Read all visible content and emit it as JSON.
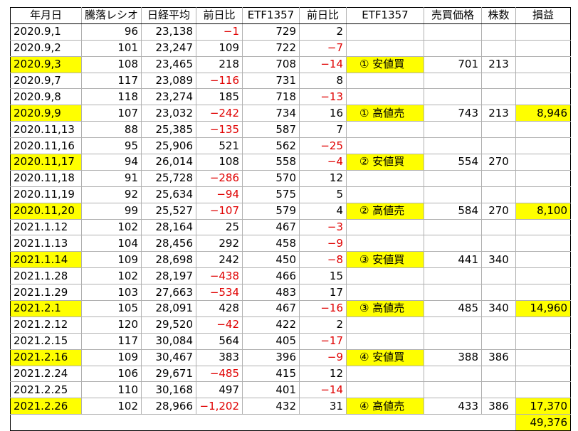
{
  "headers": [
    "年月日",
    "騰落レシオ",
    "日経平均",
    "前日比",
    "ETF1357",
    "前日比",
    "ETF1357",
    "売買価格",
    "株数",
    "損益"
  ],
  "rows": [
    {
      "date": "2020.9,1",
      "ratio": "96",
      "nikkei": "23,138",
      "nikkei_chg": "−1",
      "etf": "729",
      "etf_chg": "2",
      "op": "",
      "price": "",
      "shares": "",
      "pl": "",
      "highlight": false
    },
    {
      "date": "2020.9,2",
      "ratio": "101",
      "nikkei": "23,247",
      "nikkei_chg": "109",
      "etf": "722",
      "etf_chg": "−7",
      "op": "",
      "price": "",
      "shares": "",
      "pl": "",
      "highlight": false
    },
    {
      "date": "2020.9,3",
      "ratio": "108",
      "nikkei": "23,465",
      "nikkei_chg": "218",
      "etf": "708",
      "etf_chg": "−14",
      "op": "① 安値買",
      "price": "701",
      "shares": "213",
      "pl": "",
      "highlight": true
    },
    {
      "date": "2020.9,7",
      "ratio": "117",
      "nikkei": "23,089",
      "nikkei_chg": "−116",
      "etf": "731",
      "etf_chg": "8",
      "op": "",
      "price": "",
      "shares": "",
      "pl": "",
      "highlight": false
    },
    {
      "date": "2020.9,8",
      "ratio": "118",
      "nikkei": "23,274",
      "nikkei_chg": "185",
      "etf": "718",
      "etf_chg": "−13",
      "op": "",
      "price": "",
      "shares": "",
      "pl": "",
      "highlight": false
    },
    {
      "date": "2020.9,9",
      "ratio": "107",
      "nikkei": "23,032",
      "nikkei_chg": "−242",
      "etf": "734",
      "etf_chg": "16",
      "op": "① 高値売",
      "price": "743",
      "shares": "213",
      "pl": "8,946",
      "highlight": true
    },
    {
      "date": "2020.11,13",
      "ratio": "88",
      "nikkei": "25,385",
      "nikkei_chg": "−135",
      "etf": "587",
      "etf_chg": "7",
      "op": "",
      "price": "",
      "shares": "",
      "pl": "",
      "highlight": false
    },
    {
      "date": "2020.11,16",
      "ratio": "95",
      "nikkei": "25,906",
      "nikkei_chg": "521",
      "etf": "562",
      "etf_chg": "−25",
      "op": "",
      "price": "",
      "shares": "",
      "pl": "",
      "highlight": false
    },
    {
      "date": "2020.11,17",
      "ratio": "94",
      "nikkei": "26,014",
      "nikkei_chg": "108",
      "etf": "558",
      "etf_chg": "−4",
      "op": "② 安値買",
      "price": "554",
      "shares": "270",
      "pl": "",
      "highlight": true
    },
    {
      "date": "2020.11,18",
      "ratio": "91",
      "nikkei": "25,728",
      "nikkei_chg": "−286",
      "etf": "570",
      "etf_chg": "12",
      "op": "",
      "price": "",
      "shares": "",
      "pl": "",
      "highlight": false
    },
    {
      "date": "2020.11,19",
      "ratio": "92",
      "nikkei": "25,634",
      "nikkei_chg": "−94",
      "etf": "575",
      "etf_chg": "5",
      "op": "",
      "price": "",
      "shares": "",
      "pl": "",
      "highlight": false
    },
    {
      "date": "2020.11,20",
      "ratio": "99",
      "nikkei": "25,527",
      "nikkei_chg": "−107",
      "etf": "579",
      "etf_chg": "4",
      "op": "② 高値売",
      "price": "584",
      "shares": "270",
      "pl": "8,100",
      "highlight": true
    },
    {
      "date": "2021.1.12",
      "ratio": "102",
      "nikkei": "28,164",
      "nikkei_chg": "25",
      "etf": "467",
      "etf_chg": "−3",
      "op": "",
      "price": "",
      "shares": "",
      "pl": "",
      "highlight": false
    },
    {
      "date": "2021.1.13",
      "ratio": "104",
      "nikkei": "28,456",
      "nikkei_chg": "292",
      "etf": "458",
      "etf_chg": "−9",
      "op": "",
      "price": "",
      "shares": "",
      "pl": "",
      "highlight": false
    },
    {
      "date": "2021.1.14",
      "ratio": "109",
      "nikkei": "28,698",
      "nikkei_chg": "242",
      "etf": "450",
      "etf_chg": "−8",
      "op": "③ 安値買",
      "price": "441",
      "shares": "340",
      "pl": "",
      "highlight": true
    },
    {
      "date": "2021.1.28",
      "ratio": "102",
      "nikkei": "28,197",
      "nikkei_chg": "−438",
      "etf": "466",
      "etf_chg": "15",
      "op": "",
      "price": "",
      "shares": "",
      "pl": "",
      "highlight": false
    },
    {
      "date": "2021.1.29",
      "ratio": "103",
      "nikkei": "27,663",
      "nikkei_chg": "−534",
      "etf": "483",
      "etf_chg": "17",
      "op": "",
      "price": "",
      "shares": "",
      "pl": "",
      "highlight": false
    },
    {
      "date": "2021.2.1",
      "ratio": "105",
      "nikkei": "28,091",
      "nikkei_chg": "428",
      "etf": "467",
      "etf_chg": "−16",
      "op": "③ 高値売",
      "price": "485",
      "shares": "340",
      "pl": "14,960",
      "highlight": true
    },
    {
      "date": "2021.2.12",
      "ratio": "120",
      "nikkei": "29,520",
      "nikkei_chg": "−42",
      "etf": "422",
      "etf_chg": "2",
      "op": "",
      "price": "",
      "shares": "",
      "pl": "",
      "highlight": false
    },
    {
      "date": "2021.2.15",
      "ratio": "117",
      "nikkei": "30,084",
      "nikkei_chg": "564",
      "etf": "405",
      "etf_chg": "−17",
      "op": "",
      "price": "",
      "shares": "",
      "pl": "",
      "highlight": false
    },
    {
      "date": "2021.2.16",
      "ratio": "109",
      "nikkei": "30,467",
      "nikkei_chg": "383",
      "etf": "396",
      "etf_chg": "−9",
      "op": "④ 安値買",
      "price": "388",
      "shares": "386",
      "pl": "",
      "highlight": true
    },
    {
      "date": "2021.2.24",
      "ratio": "106",
      "nikkei": "29,671",
      "nikkei_chg": "−485",
      "etf": "415",
      "etf_chg": "12",
      "op": "",
      "price": "",
      "shares": "",
      "pl": "",
      "highlight": false
    },
    {
      "date": "2021.2.25",
      "ratio": "110",
      "nikkei": "30,168",
      "nikkei_chg": "497",
      "etf": "401",
      "etf_chg": "−14",
      "op": "",
      "price": "",
      "shares": "",
      "pl": "",
      "highlight": false
    },
    {
      "date": "2021.2.26",
      "ratio": "102",
      "nikkei": "28,966",
      "nikkei_chg": "−1,202",
      "etf": "432",
      "etf_chg": "31",
      "op": "④ 高値売",
      "price": "433",
      "shares": "386",
      "pl": "17,370",
      "highlight": true
    }
  ],
  "total": "49,376",
  "colors": {
    "highlight": "#ffff00",
    "negative": "#e00000"
  }
}
